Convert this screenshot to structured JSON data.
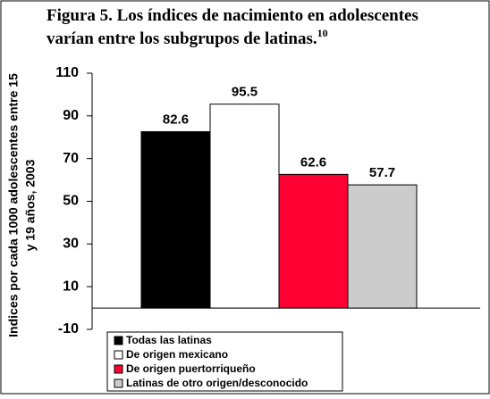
{
  "chart_data": {
    "type": "bar",
    "title": [
      "Figura 5. Los índices de nacimiento en adolescentes",
      "varían entre los subgrupos de latinas."
    ],
    "title_note": "10",
    "ylabel": [
      "Indices por cada 1000 adolescentes entre 15",
      "y 19 años, 2003"
    ],
    "categories": [
      "Todas las latinas",
      "De origen mexicano",
      "De origen puertorriqueño",
      "Latinas de otro origen/desconocido"
    ],
    "values": [
      82.6,
      95.5,
      62.6,
      57.7
    ],
    "colors": [
      "#000000",
      "#ffffff",
      "#ff0033",
      "#cccccc"
    ],
    "ylim": [
      -10,
      110
    ],
    "yticks": [
      -10,
      10,
      30,
      50,
      70,
      90,
      110
    ],
    "grid": false,
    "legend": "bottom"
  }
}
